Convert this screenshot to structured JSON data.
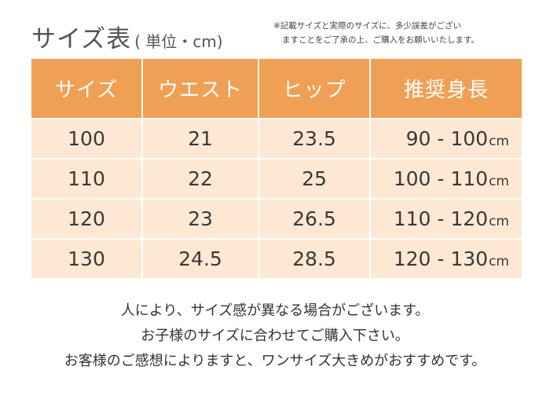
{
  "header": {
    "title": "サイズ表",
    "unit": "( 単位・cm)",
    "note_line1": "※記載サイズと実際のサイズに、多少誤差がござい",
    "note_line2": "ますことをご了承の上、ご購入をお願いいたします。"
  },
  "table": {
    "headers": [
      "サイズ",
      "ウエスト",
      "ヒップ",
      "推奨身長"
    ],
    "unit_suffix": "cm",
    "rows": [
      {
        "size": "100",
        "waist": "21",
        "hip": "23.5",
        "height": "90 - 100"
      },
      {
        "size": "110",
        "waist": "22",
        "hip": "25",
        "height": "100 - 110"
      },
      {
        "size": "120",
        "waist": "23",
        "hip": "26.5",
        "height": "110 - 120"
      },
      {
        "size": "130",
        "waist": "24.5",
        "hip": "28.5",
        "height": "120 - 130"
      }
    ]
  },
  "footer": {
    "line1": "人により、サイズ感が異なる場合がございます。",
    "line2": "お子様のサイズに合わせてご購入下さい。",
    "line3": "お客様のご感想によりますと、ワンサイズ大きめがおすすめです。"
  },
  "colors": {
    "header_bg": "#f0a055",
    "row_bg": "#fde9d3"
  }
}
